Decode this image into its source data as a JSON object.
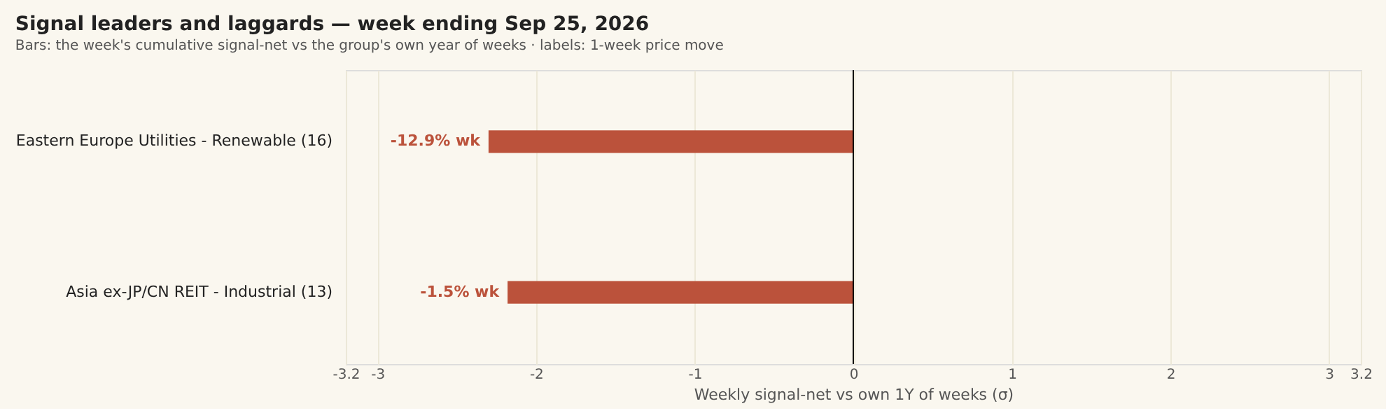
{
  "chart_data": {
    "type": "bar",
    "orientation": "horizontal",
    "title": "Signal leaders and laggards — week ending Sep 25, 2026",
    "subtitle": "Bars: the week's cumulative signal-net vs the group's own year of weeks · labels: 1-week price move",
    "xlabel": "Weekly signal-net vs own 1Y of weeks (σ)",
    "categories": [
      "Eastern Europe Utilities - Renewable (16)",
      "Asia ex-JP/CN REIT - Industrial (13)"
    ],
    "values": [
      -2.3,
      -2.18
    ],
    "annotations": [
      {
        "text": "-12.9% wk",
        "x": -2.3,
        "y": "Eastern Europe Utilities - Renewable (16)"
      },
      {
        "text": "-1.5% wk",
        "x": -2.18,
        "y": "Asia ex-JP/CN REIT - Industrial (13)"
      }
    ],
    "color": "#bb523b",
    "xlim": [
      -3.2,
      3.2
    ],
    "xticks": [
      -3.2,
      -3,
      -2,
      -1,
      0,
      1,
      2,
      3,
      3.2
    ],
    "grid": "x",
    "ref_lines": [
      {
        "axis": "x",
        "value": 0,
        "color": "#000000"
      }
    ]
  }
}
